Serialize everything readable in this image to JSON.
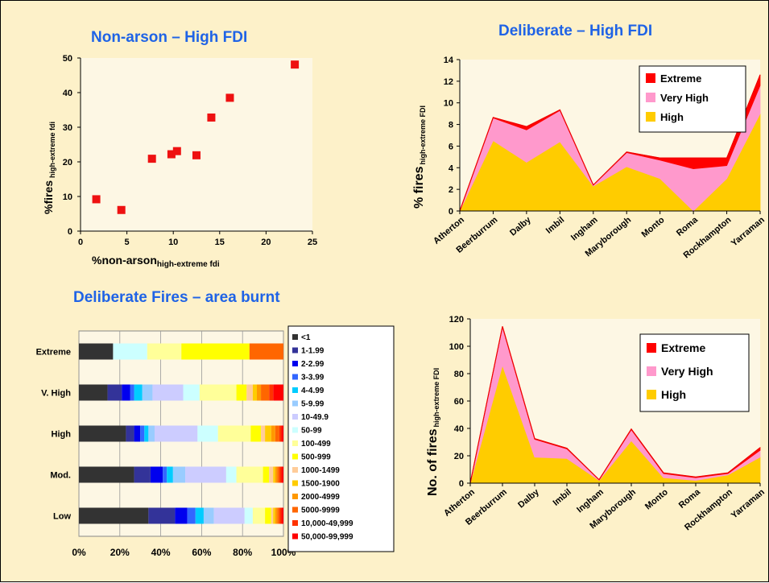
{
  "chart_data": [
    {
      "type": "scatter",
      "title": "Non-arson – High FDI",
      "xlabel": "%non-arson",
      "xlabel_sub": "high-extreme fdi",
      "ylabel": "%fires",
      "ylabel_sub": "high-extreme fdi",
      "xlim": [
        0,
        25
      ],
      "ylim": [
        0,
        50
      ],
      "xticks": [
        "0",
        "5",
        "10",
        "15",
        "20",
        "25"
      ],
      "yticks": [
        "0",
        "10",
        "20",
        "30",
        "40",
        "50"
      ],
      "points": [
        {
          "x": 1.7,
          "y": 9.2
        },
        {
          "x": 4.4,
          "y": 6.1
        },
        {
          "x": 7.7,
          "y": 20.9
        },
        {
          "x": 9.8,
          "y": 22.2
        },
        {
          "x": 10.4,
          "y": 23.1
        },
        {
          "x": 12.5,
          "y": 21.9
        },
        {
          "x": 14.1,
          "y": 32.8
        },
        {
          "x": 16.1,
          "y": 38.5
        },
        {
          "x": 23.1,
          "y": 48.1
        }
      ],
      "marker_color": "#ee1111",
      "grid": false
    },
    {
      "type": "area",
      "stacked": true,
      "title": "Deliberate – High FDI",
      "ylabel": "% fires",
      "ylabel_sub": "high-extreme FDI",
      "ylim": [
        0,
        14
      ],
      "yticks": [
        "0",
        "2",
        "4",
        "6",
        "8",
        "10",
        "12",
        "14"
      ],
      "categories": [
        "Atherton",
        "Beerburrum",
        "Dalby",
        "Imbil",
        "Ingham",
        "Maryborough",
        "Monto",
        "Roma",
        "Rockhampton",
        "Yarraman"
      ],
      "series": [
        {
          "name": "High",
          "color": "#ffcc00",
          "values": [
            0,
            6.5,
            4.5,
            6.4,
            2.3,
            4.1,
            3.0,
            0,
            3.0,
            9.0
          ]
        },
        {
          "name": "Very High",
          "color": "#ff99cc",
          "values": [
            0,
            2.1,
            3.0,
            2.9,
            0.1,
            1.3,
            1.7,
            3.9,
            1.2,
            2.6
          ]
        },
        {
          "name": "Extreme",
          "color": "#ff0000",
          "values": [
            0,
            0.05,
            0.3,
            0.05,
            0,
            0.05,
            0.2,
            1.0,
            0.7,
            1.0
          ]
        }
      ],
      "legend": [
        "Extreme",
        "Very High",
        "High"
      ],
      "legend_position": "top-right",
      "grid": false
    },
    {
      "type": "bar",
      "orientation": "horizontal",
      "stacked_percent": true,
      "title": "Deliberate Fires – area burnt",
      "categories": [
        "Extreme",
        "V. High",
        "High",
        "Mod.",
        "Low"
      ],
      "xticks": [
        "0%",
        "20%",
        "40%",
        "60%",
        "80%",
        "100%"
      ],
      "segments": [
        {
          "name": "<1",
          "color": "#333333"
        },
        {
          "name": "1-1.99",
          "color": "#333399"
        },
        {
          "name": "2-2.99",
          "color": "#0000ee"
        },
        {
          "name": "3-3.99",
          "color": "#3366ff"
        },
        {
          "name": "4-4.99",
          "color": "#00ccff"
        },
        {
          "name": "5-9.99",
          "color": "#99ccff"
        },
        {
          "name": "10-49.9",
          "color": "#ccccff"
        },
        {
          "name": "50-99",
          "color": "#ccffff"
        },
        {
          "name": "100-499",
          "color": "#ffff99"
        },
        {
          "name": "500-999",
          "color": "#ffff00"
        },
        {
          "name": "1000-1499",
          "color": "#ffcc99"
        },
        {
          "name": "1500-1900",
          "color": "#ffcc00"
        },
        {
          "name": "2000-4999",
          "color": "#ff9900"
        },
        {
          "name": "5000-9999",
          "color": "#ff6600"
        },
        {
          "name": "10,000-49,999",
          "color": "#ff3300"
        },
        {
          "name": "50,000-99,999",
          "color": "#ff0000"
        }
      ],
      "values": {
        "Extreme": [
          16.7,
          0,
          0,
          0,
          0,
          0,
          0,
          16.7,
          16.7,
          33.3,
          0,
          0,
          0,
          16.6,
          0,
          0
        ],
        "V. High": [
          14,
          7,
          4,
          2,
          4,
          5,
          15,
          8,
          18,
          5,
          3,
          2,
          2,
          4,
          2,
          5
        ],
        "High": [
          23,
          4,
          3,
          2,
          2,
          3,
          21,
          10,
          16,
          5,
          2,
          3,
          2,
          2,
          1,
          1
        ],
        "Mod.": [
          27,
          8,
          6,
          2,
          3,
          6,
          20,
          5,
          13,
          3,
          2,
          1,
          1,
          1,
          1,
          1
        ],
        "Low": [
          34,
          13,
          6,
          4,
          4,
          5,
          15,
          4,
          6,
          3,
          1,
          1,
          1,
          1,
          1,
          1
        ]
      },
      "xlim": [
        0,
        100
      ],
      "legend_position": "right",
      "grid": true
    },
    {
      "type": "area",
      "stacked": true,
      "ylabel": "No. of fires",
      "ylabel_sub": "high-extreme FDI",
      "ylim": [
        0,
        120
      ],
      "yticks": [
        "0",
        "20",
        "40",
        "60",
        "80",
        "100",
        "120"
      ],
      "categories": [
        "Atherton",
        "Beerburrum",
        "Dalby",
        "Imbil",
        "Ingham",
        "Maryborough",
        "Monto",
        "Roma",
        "Rockhampton",
        "Yarraman"
      ],
      "series": [
        {
          "name": "High",
          "color": "#ffcc00",
          "values": [
            0,
            86,
            19,
            18,
            2,
            31,
            4,
            2,
            6,
            19
          ]
        },
        {
          "name": "Very High",
          "color": "#ff99cc",
          "values": [
            0,
            28,
            13,
            7,
            0.5,
            8,
            3,
            2,
            1,
            5
          ]
        },
        {
          "name": "Extreme",
          "color": "#ff0000",
          "values": [
            0,
            0.5,
            0.5,
            0.5,
            0,
            0.5,
            0.5,
            0.5,
            0.5,
            2
          ]
        }
      ],
      "legend": [
        "Extreme",
        "Very High",
        "High"
      ],
      "legend_position": "top-right",
      "grid": false
    }
  ]
}
